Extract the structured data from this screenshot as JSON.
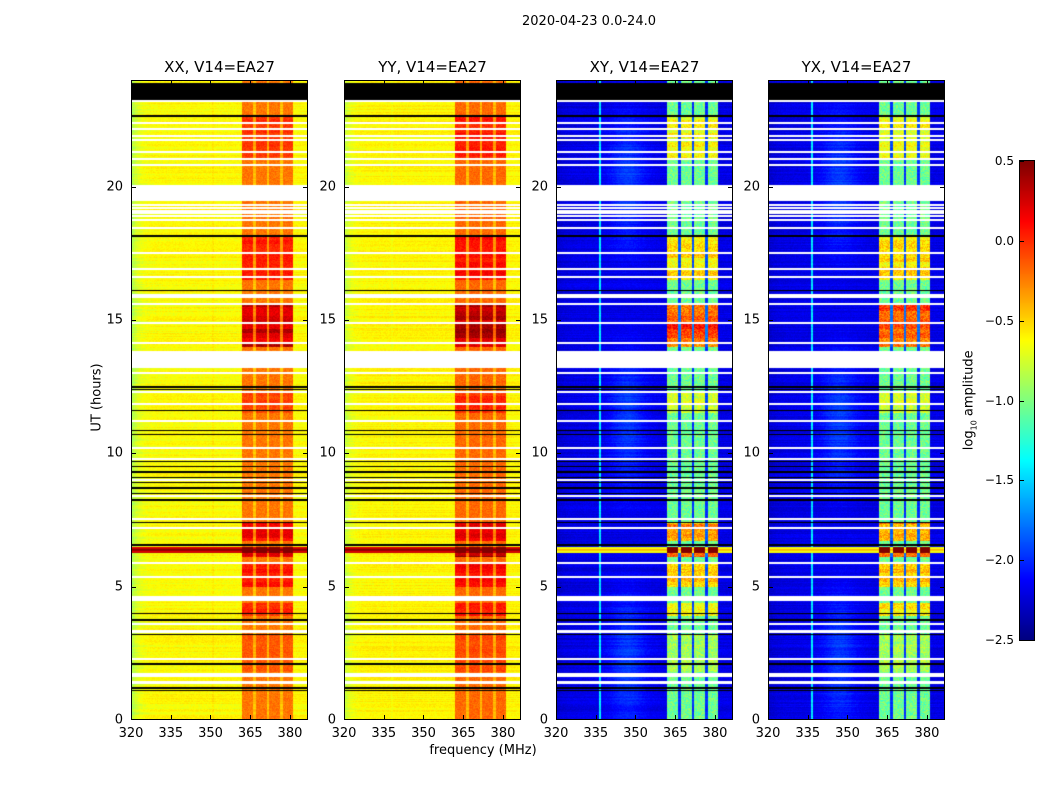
{
  "suptitle": "2020-04-23 0.0-24.0",
  "chart_data": {
    "type": "heatmap",
    "xlabel": "frequency (MHz)",
    "ylabel": "UT (hours)",
    "xlim": [
      320,
      386.8
    ],
    "ylim": [
      0,
      24
    ],
    "xticks": [
      "320",
      "335",
      "350",
      "365",
      "380"
    ],
    "xtick_values": [
      320,
      335,
      350,
      365,
      380
    ],
    "yticks": [
      "0",
      "5",
      "10",
      "15",
      "20"
    ],
    "ytick_values": [
      0,
      5,
      10,
      15,
      20
    ],
    "colorbar": {
      "label_prefix": "log",
      "label_sub": "10",
      "label_suffix": " amplitude",
      "range": [
        -2.5,
        0.5
      ],
      "colormap": "jet",
      "ticks": [
        "0.5",
        "0.0",
        "−0.5",
        "−1.0",
        "−1.5",
        "−2.0",
        "−2.5"
      ],
      "tick_values": [
        0.5,
        0.0,
        -0.5,
        -1.0,
        -1.5,
        -2.0,
        -2.5
      ]
    },
    "panels": [
      {
        "title": "XX, V14=EA27",
        "baseline": -0.62,
        "edge_drop": -0.3,
        "band_level": -0.22,
        "gap_level": -0.45,
        "hot_gain": 0.7,
        "vline_mhz": 351,
        "vline_delta": 0.05,
        "cross": false
      },
      {
        "title": "YY, V14=EA27",
        "baseline": -0.6,
        "edge_drop": -0.25,
        "band_level": -0.18,
        "gap_level": -0.42,
        "hot_gain": 0.75,
        "vline_mhz": 338,
        "vline_delta": -0.05,
        "cross": false
      },
      {
        "title": "XY, V14=EA27",
        "baseline": -2.2,
        "edge_drop": -0.1,
        "band_level": -1.05,
        "gap_level": -2.0,
        "hot_gain": 1.35,
        "vline_mhz": 336.5,
        "vline_delta": 0.75,
        "cross": true
      },
      {
        "title": "YX, V14=EA27",
        "baseline": -2.2,
        "edge_drop": -0.1,
        "band_level": -1.05,
        "gap_level": -2.0,
        "hot_gain": 1.35,
        "vline_mhz": 336.5,
        "vline_delta": 0.75,
        "cross": true
      }
    ],
    "band_mhz": [
      362,
      381
    ],
    "band_gaps_mhz": [
      [
        366.2,
        367.2
      ],
      [
        371.2,
        372.2
      ],
      [
        376.2,
        377.2
      ]
    ],
    "flagged_intervals_hours": [
      [
        19.45,
        20.08
      ],
      [
        13.2,
        13.85
      ],
      [
        4.45,
        4.65
      ],
      [
        1.62,
        1.78
      ],
      [
        1.35,
        1.48
      ]
    ],
    "flagged_lines_hours": [
      23.2,
      22.4,
      22.15,
      21.9,
      21.75,
      21.3,
      21.05,
      20.8,
      19.3,
      19.2,
      19.1,
      19.0,
      18.9,
      18.75,
      18.45,
      17.5,
      16.9,
      16.6,
      15.95,
      15.85,
      15.6,
      14.9,
      14.15,
      13.0,
      12.3,
      11.85,
      11.2,
      10.2,
      9.8,
      9.0,
      8.4,
      7.55,
      7.2,
      5.9,
      5.35,
      3.6,
      3.35,
      3.3,
      2.3
    ],
    "zero_intervals_hours": [
      [
        23.25,
        23.9
      ]
    ],
    "zero_lines_hours": [
      22.65,
      18.15,
      16.1,
      12.48,
      12.4,
      11.6,
      10.85,
      10.7,
      9.7,
      9.5,
      9.3,
      9.1,
      8.9,
      8.7,
      8.5,
      8.25,
      7.4,
      6.57,
      4.0,
      3.75,
      3.2,
      2.1,
      1.2,
      1.1
    ],
    "hot_intervals_hours": [
      {
        "range": [
          21.0,
          22.6
        ],
        "level": 0.35
      },
      {
        "range": [
          16.5,
          18.2
        ],
        "level": 0.45
      },
      {
        "range": [
          14.0,
          15.6
        ],
        "level": 0.85
      },
      {
        "range": [
          11.5,
          12.3
        ],
        "level": 0.3
      },
      {
        "range": [
          6.7,
          7.4
        ],
        "level": 0.65
      },
      {
        "range": [
          6.1,
          6.5
        ],
        "level": 1.0
      },
      {
        "range": [
          5.0,
          5.9
        ],
        "level": 0.5
      },
      {
        "range": [
          3.9,
          4.4
        ],
        "level": 0.4
      },
      {
        "range": [
          1.8,
          3.2
        ],
        "level": 0.15
      }
    ],
    "broadband_rfi_hours": {
      "range": [
        6.25,
        6.5
      ],
      "level": 0.2
    }
  }
}
